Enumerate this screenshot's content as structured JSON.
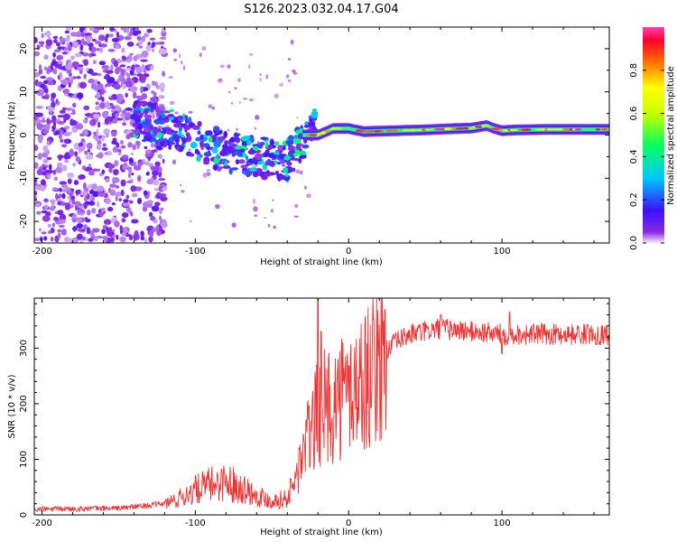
{
  "title": "S126.2023.032.04.17.G04",
  "chart_data": [
    {
      "type": "heatmap",
      "name": "spectrogram",
      "xlabel": "Height of straight line (km)",
      "ylabel": "Frequency (Hz)",
      "xlim": [
        -205,
        170
      ],
      "ylim": [
        -25,
        25
      ],
      "xticks": [
        -200,
        -100,
        0,
        100
      ],
      "yticks": [
        -20,
        -10,
        0,
        10,
        20
      ],
      "colorbar": {
        "label": "Normalized spectral amplitude",
        "range": [
          0,
          1
        ],
        "ticks": [
          "0.0",
          "0.2",
          "0.4",
          "0.6",
          "0.8"
        ]
      },
      "carrier_ridge": [
        [
          -30,
          0.0
        ],
        [
          -20,
          0.0
        ],
        [
          -10,
          1.5
        ],
        [
          0,
          1.5
        ],
        [
          10,
          0.8
        ],
        [
          30,
          1.0
        ],
        [
          50,
          1.2
        ],
        [
          70,
          1.5
        ],
        [
          80,
          1.6
        ],
        [
          90,
          2.2
        ],
        [
          95,
          1.5
        ],
        [
          100,
          1.0
        ],
        [
          110,
          1.2
        ],
        [
          130,
          1.3
        ],
        [
          150,
          1.3
        ],
        [
          170,
          1.3
        ]
      ],
      "scatter_band": [
        [
          -135,
          3
        ],
        [
          -120,
          2
        ],
        [
          -100,
          -1
        ],
        [
          -80,
          -4
        ],
        [
          -60,
          -5
        ],
        [
          -40,
          -6
        ],
        [
          -25,
          2
        ]
      ]
    },
    {
      "type": "line",
      "name": "snr",
      "xlabel": "Height of straight line (km)",
      "ylabel": "SNR (10 * v/v)",
      "xlim": [
        -205,
        170
      ],
      "ylim": [
        0,
        390
      ],
      "xticks": [
        -200,
        -100,
        0,
        100
      ],
      "yticks": [
        0,
        100,
        200,
        300
      ],
      "color": "#ee3333",
      "trend": [
        [
          -205,
          10
        ],
        [
          -150,
          12
        ],
        [
          -120,
          20
        ],
        [
          -110,
          30
        ],
        [
          -100,
          45
        ],
        [
          -90,
          55
        ],
        [
          -80,
          60
        ],
        [
          -70,
          50
        ],
        [
          -60,
          35
        ],
        [
          -50,
          25
        ],
        [
          -40,
          30
        ],
        [
          -35,
          60
        ],
        [
          -30,
          110
        ],
        [
          -25,
          150
        ],
        [
          -20,
          180
        ],
        [
          -15,
          195
        ],
        [
          -10,
          200
        ],
        [
          -5,
          215
        ],
        [
          0,
          220
        ],
        [
          10,
          240
        ],
        [
          20,
          280
        ],
        [
          30,
          310
        ],
        [
          40,
          325
        ],
        [
          60,
          335
        ],
        [
          80,
          330
        ],
        [
          100,
          325
        ],
        [
          120,
          325
        ],
        [
          140,
          325
        ],
        [
          170,
          325
        ]
      ],
      "peaks": [
        [
          -20,
          390
        ],
        [
          -18,
          330
        ],
        [
          60,
          360
        ],
        [
          105,
          365
        ],
        [
          100,
          290
        ]
      ]
    }
  ]
}
